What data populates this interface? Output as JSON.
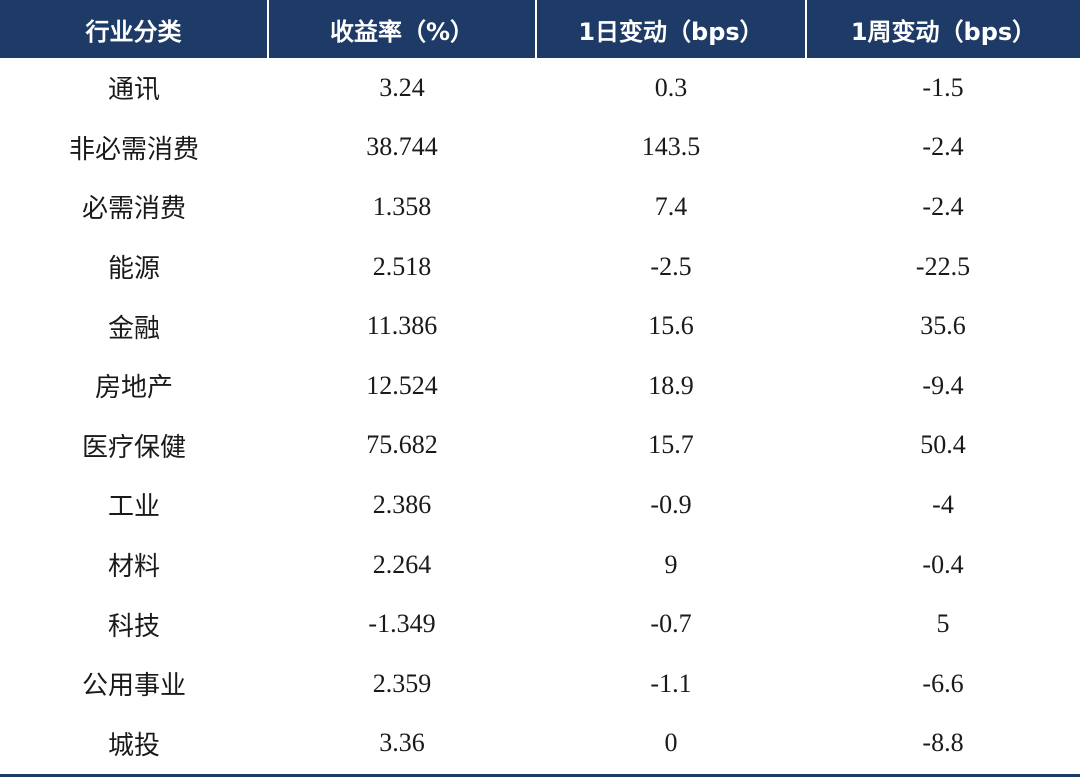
{
  "table": {
    "headers": [
      "行业分类",
      "收益率（%）",
      "1日变动（bps）",
      "1周变动（bps）"
    ],
    "rows": [
      {
        "category": "通讯",
        "yield": "3.24",
        "chg_1d": "0.3",
        "chg_1w": "-1.5"
      },
      {
        "category": "非必需消费",
        "yield": "38.744",
        "chg_1d": "143.5",
        "chg_1w": "-2.4"
      },
      {
        "category": "必需消费",
        "yield": "1.358",
        "chg_1d": "7.4",
        "chg_1w": "-2.4"
      },
      {
        "category": "能源",
        "yield": "2.518",
        "chg_1d": "-2.5",
        "chg_1w": "-22.5"
      },
      {
        "category": "金融",
        "yield": "11.386",
        "chg_1d": "15.6",
        "chg_1w": "35.6"
      },
      {
        "category": "房地产",
        "yield": "12.524",
        "chg_1d": "18.9",
        "chg_1w": "-9.4"
      },
      {
        "category": "医疗保健",
        "yield": "75.682",
        "chg_1d": "15.7",
        "chg_1w": "50.4"
      },
      {
        "category": "工业",
        "yield": "2.386",
        "chg_1d": "-0.9",
        "chg_1w": "-4"
      },
      {
        "category": "材料",
        "yield": "2.264",
        "chg_1d": "9",
        "chg_1w": "-0.4"
      },
      {
        "category": "科技",
        "yield": "-1.349",
        "chg_1d": "-0.7",
        "chg_1w": "5"
      },
      {
        "category": "公用事业",
        "yield": "2.359",
        "chg_1d": "-1.1",
        "chg_1w": "-6.6"
      },
      {
        "category": "城投",
        "yield": "3.36",
        "chg_1d": "0",
        "chg_1w": "-8.8"
      }
    ]
  },
  "colors": {
    "header_bg": "#1e3a66",
    "header_text": "#ffffff",
    "body_text": "#1a1a1a"
  }
}
